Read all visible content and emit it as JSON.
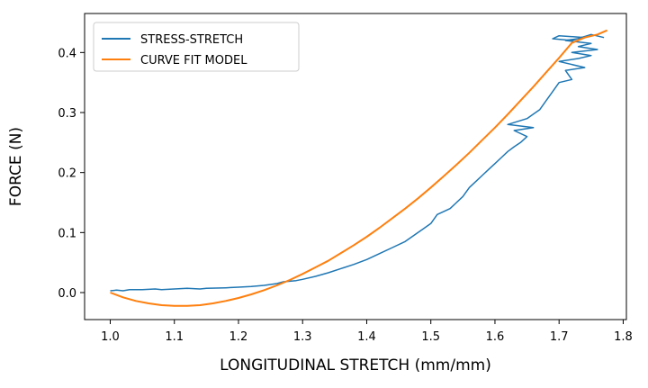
{
  "chart_data": {
    "type": "line",
    "xlabel": "LONGITUDINAL STRETCH (mm/mm)",
    "ylabel": "FORCE (N)",
    "xlim": [
      0.96,
      1.805
    ],
    "ylim": [
      -0.045,
      0.465
    ],
    "x_ticks": [
      1.0,
      1.1,
      1.2,
      1.3,
      1.4,
      1.5,
      1.6,
      1.7,
      1.8
    ],
    "y_ticks": [
      0.0,
      0.1,
      0.2,
      0.3,
      0.4
    ],
    "x_tick_labels": [
      "1.0",
      "1.1",
      "1.2",
      "1.3",
      "1.4",
      "1.5",
      "1.6",
      "1.7",
      "1.8"
    ],
    "y_tick_labels": [
      "0.0",
      "0.1",
      "0.2",
      "0.3",
      "0.4"
    ],
    "grid": false,
    "legend_position": "upper-left",
    "series": [
      {
        "name": "STRESS-STRETCH",
        "color": "#1f77b4",
        "x": [
          1.0,
          1.01,
          1.02,
          1.03,
          1.05,
          1.07,
          1.08,
          1.1,
          1.12,
          1.14,
          1.15,
          1.18,
          1.2,
          1.22,
          1.24,
          1.26,
          1.27,
          1.29,
          1.3,
          1.32,
          1.34,
          1.36,
          1.38,
          1.4,
          1.42,
          1.44,
          1.46,
          1.48,
          1.5,
          1.51,
          1.53,
          1.54,
          1.55,
          1.56,
          1.57,
          1.58,
          1.59,
          1.6,
          1.61,
          1.62,
          1.63,
          1.64,
          1.65,
          1.63,
          1.66,
          1.62,
          1.65,
          1.67,
          1.68,
          1.69,
          1.7,
          1.72,
          1.71,
          1.74,
          1.7,
          1.73,
          1.75,
          1.72,
          1.76,
          1.73,
          1.75,
          1.71,
          1.74,
          1.7,
          1.69,
          1.72,
          1.75,
          1.77
        ],
        "values": [
          0.003,
          0.004,
          0.003,
          0.005,
          0.005,
          0.006,
          0.005,
          0.006,
          0.007,
          0.006,
          0.007,
          0.008,
          0.009,
          0.01,
          0.012,
          0.015,
          0.018,
          0.02,
          0.022,
          0.027,
          0.033,
          0.04,
          0.047,
          0.055,
          0.065,
          0.075,
          0.085,
          0.1,
          0.115,
          0.13,
          0.14,
          0.15,
          0.16,
          0.175,
          0.185,
          0.195,
          0.205,
          0.215,
          0.225,
          0.235,
          0.243,
          0.25,
          0.26,
          0.27,
          0.275,
          0.28,
          0.29,
          0.305,
          0.32,
          0.335,
          0.35,
          0.355,
          0.37,
          0.375,
          0.385,
          0.39,
          0.395,
          0.4,
          0.405,
          0.41,
          0.415,
          0.42,
          0.425,
          0.428,
          0.423,
          0.42,
          0.43,
          0.425
        ]
      },
      {
        "name": "CURVE FIT MODEL",
        "color": "#ff7f0e",
        "x": [
          1.0,
          1.02,
          1.04,
          1.06,
          1.08,
          1.1,
          1.12,
          1.14,
          1.16,
          1.18,
          1.2,
          1.22,
          1.24,
          1.26,
          1.28,
          1.3,
          1.32,
          1.34,
          1.36,
          1.38,
          1.4,
          1.42,
          1.44,
          1.46,
          1.48,
          1.5,
          1.52,
          1.54,
          1.56,
          1.58,
          1.6,
          1.62,
          1.64,
          1.66,
          1.68,
          1.7,
          1.72,
          1.74,
          1.76,
          1.775
        ],
        "values": [
          0.0,
          -0.008,
          -0.014,
          -0.018,
          -0.021,
          -0.022,
          -0.022,
          -0.021,
          -0.018,
          -0.014,
          -0.009,
          -0.003,
          0.004,
          0.012,
          0.021,
          0.031,
          0.042,
          0.053,
          0.066,
          0.079,
          0.093,
          0.108,
          0.124,
          0.14,
          0.157,
          0.175,
          0.194,
          0.213,
          0.233,
          0.254,
          0.275,
          0.297,
          0.32,
          0.343,
          0.367,
          0.391,
          0.416,
          0.425,
          0.43,
          0.437
        ]
      }
    ]
  }
}
